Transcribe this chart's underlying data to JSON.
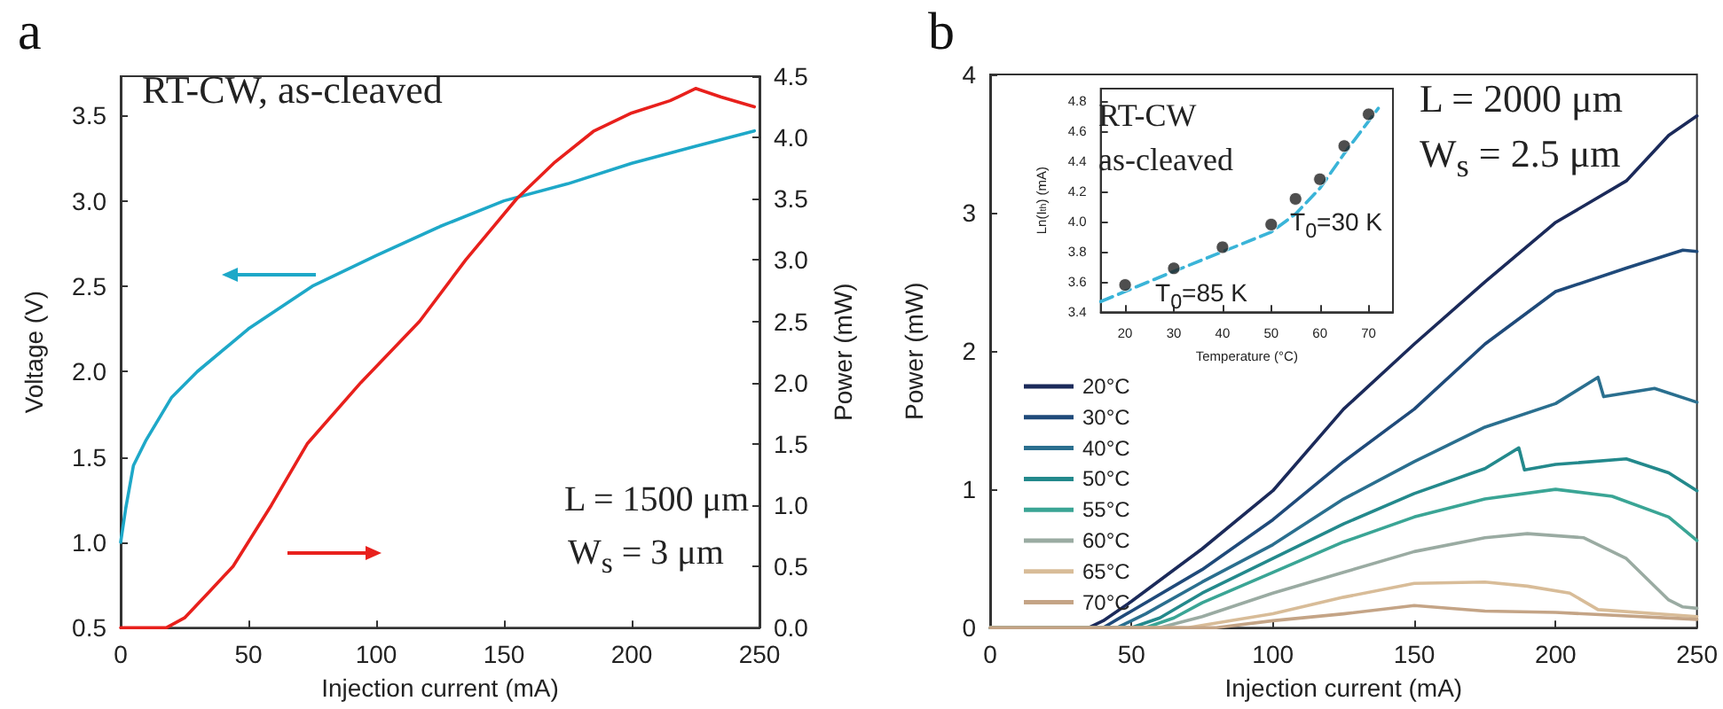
{
  "chart_data": [
    {
      "type": "line",
      "title": "a",
      "xlabel": "Injection current (mA)",
      "ylabel": "Voltage (V)",
      "y2label": "Power (mW)",
      "xlim": [
        0,
        250
      ],
      "xticks": [
        0,
        50,
        100,
        150,
        200,
        250
      ],
      "ylim": [
        0.5,
        3.73
      ],
      "yticks": [
        0.5,
        {
          "value": 1,
          "label": "1.0"
        },
        1.5,
        {
          "value": 2,
          "label": "2.0"
        },
        2.5,
        {
          "value": 3,
          "label": "3.0"
        },
        3.5
      ],
      "y2lim": [
        0,
        4.5
      ],
      "y2ticks": [
        {
          "value": 0,
          "label": "0.0"
        },
        0.5,
        {
          "value": 1,
          "label": "1.0"
        },
        1.5,
        {
          "value": 2,
          "label": "2.0"
        },
        2.5,
        {
          "value": 3,
          "label": "3.0"
        },
        3.5,
        {
          "value": 4,
          "label": "4.0"
        },
        4.5
      ],
      "grid": false,
      "marker": "none",
      "line_style": "solid",
      "annotations": [
        "RT-CW, as-cleaved",
        "L = 1500 μm",
        "W$_{s}$ = 3 μm"
      ],
      "series": [
        {
          "color": "#1ea8c8",
          "x": [
            0,
            2,
            5,
            10,
            20,
            30,
            50,
            75,
            100,
            125,
            150,
            175,
            200,
            225,
            248
          ],
          "values": [
            1.0,
            1.2,
            1.45,
            1.6,
            1.85,
            2.0,
            2.25,
            2.5,
            2.68,
            2.85,
            3.0,
            3.1,
            3.22,
            3.32,
            3.41
          ]
        },
        {
          "color": "#e8201c",
          "axis": "y2",
          "x": [
            0,
            18,
            25,
            35,
            44,
            59,
            73,
            94,
            117,
            135,
            155,
            170,
            185,
            200,
            215,
            225,
            235,
            248
          ],
          "values": [
            0,
            0,
            0.08,
            0.3,
            0.5,
            1.0,
            1.5,
            2.0,
            2.5,
            3.0,
            3.5,
            3.8,
            4.05,
            4.2,
            4.3,
            4.4,
            4.33,
            4.25
          ]
        }
      ]
    },
    {
      "type": "line",
      "title": "b",
      "xlabel": "Injection current (mA)",
      "ylabel": "Power (mW)",
      "xlim": [
        0,
        250
      ],
      "xticks": [
        0,
        50,
        100,
        150,
        200,
        250
      ],
      "ylim": [
        0,
        4
      ],
      "yticks": [
        0,
        1,
        2,
        3,
        4
      ],
      "grid": false,
      "marker": "none",
      "line_style": "solid",
      "legend": "left",
      "annotations": [
        "L = 2000 μm",
        "W$_{s}$ = 2.5 μm"
      ],
      "series": [
        {
          "name": "20°C",
          "color": "#1b2a5a",
          "x": [
            0,
            35,
            40,
            50,
            75,
            100,
            125,
            150,
            175,
            200,
            225,
            240,
            250
          ],
          "values": [
            0,
            0,
            0.05,
            0.19,
            0.57,
            0.99,
            1.58,
            2.05,
            2.5,
            2.93,
            3.23,
            3.56,
            3.7
          ]
        },
        {
          "name": "30°C",
          "color": "#1f4a7a",
          "x": [
            0,
            40,
            50,
            75,
            100,
            125,
            150,
            175,
            200,
            225,
            245,
            250
          ],
          "values": [
            0,
            0,
            0.12,
            0.42,
            0.78,
            1.2,
            1.58,
            2.05,
            2.43,
            2.6,
            2.73,
            2.72
          ]
        },
        {
          "name": "40°C",
          "color": "#2a6f8f",
          "x": [
            0,
            45,
            55,
            75,
            100,
            125,
            150,
            175,
            200,
            215,
            217,
            235,
            250
          ],
          "values": [
            0,
            0,
            0.1,
            0.33,
            0.6,
            0.93,
            1.2,
            1.45,
            1.62,
            1.81,
            1.67,
            1.73,
            1.63
          ]
        },
        {
          "name": "50°C",
          "color": "#23898c",
          "x": [
            0,
            50,
            60,
            75,
            100,
            125,
            150,
            175,
            187,
            189,
            200,
            225,
            240,
            250
          ],
          "values": [
            0,
            0,
            0.07,
            0.25,
            0.5,
            0.75,
            0.97,
            1.15,
            1.3,
            1.14,
            1.18,
            1.22,
            1.12,
            0.99
          ]
        },
        {
          "name": "55°C",
          "color": "#3aa595",
          "x": [
            0,
            55,
            65,
            75,
            100,
            125,
            150,
            175,
            200,
            220,
            240,
            250
          ],
          "values": [
            0,
            0,
            0.07,
            0.18,
            0.4,
            0.62,
            0.8,
            0.93,
            1.0,
            0.95,
            0.8,
            0.63
          ]
        },
        {
          "name": "60°C",
          "color": "#9aaba2",
          "x": [
            0,
            60,
            75,
            100,
            125,
            150,
            175,
            190,
            210,
            225,
            240,
            245,
            250
          ],
          "values": [
            0,
            0,
            0.08,
            0.25,
            0.4,
            0.55,
            0.65,
            0.68,
            0.65,
            0.5,
            0.2,
            0.15,
            0.14
          ]
        },
        {
          "name": "65°C",
          "color": "#d8bc98",
          "x": [
            0,
            70,
            100,
            125,
            150,
            175,
            190,
            205,
            215,
            250
          ],
          "values": [
            0,
            0,
            0.1,
            0.22,
            0.32,
            0.33,
            0.3,
            0.25,
            0.13,
            0.08
          ]
        },
        {
          "name": "70°C",
          "color": "#c4a486",
          "x": [
            0,
            80,
            100,
            125,
            150,
            175,
            200,
            250
          ],
          "values": [
            0,
            0,
            0.05,
            0.1,
            0.16,
            0.12,
            0.11,
            0.06
          ]
        }
      ]
    },
    {
      "type": "scatter",
      "xlabel": "Temperature (°C)",
      "ylabel": "Ln(I$_{th}$) (mA)",
      "xlim": [
        15,
        75
      ],
      "xticks": [
        20,
        30,
        40,
        50,
        60,
        70
      ],
      "ylim": [
        3.4,
        4.88
      ],
      "yticks": [
        3.4,
        3.6,
        3.8,
        {
          "value": 4,
          "label": "4.0"
        },
        4.2,
        4.4,
        4.6,
        4.8
      ],
      "grid": false,
      "marker": "circle",
      "annotations": [
        "RT-CW",
        "as-cleaved",
        "T$_{0}$=30 K",
        "T$_{0}$=85 K"
      ],
      "series": [
        {
          "color": "#222222",
          "x": [
            20,
            30,
            40,
            50,
            55,
            60,
            65,
            70
          ],
          "values": [
            3.58,
            3.69,
            3.83,
            3.98,
            4.15,
            4.28,
            4.5,
            4.71
          ]
        },
        {
          "type": "line",
          "marker": "none",
          "line_style": "dashed",
          "color": "#3ab4d8",
          "x": [
            15,
            30,
            40,
            50,
            55,
            60,
            65,
            72
          ],
          "values": [
            3.47,
            3.67,
            3.8,
            3.93,
            4.05,
            4.22,
            4.45,
            4.75
          ]
        }
      ]
    }
  ]
}
